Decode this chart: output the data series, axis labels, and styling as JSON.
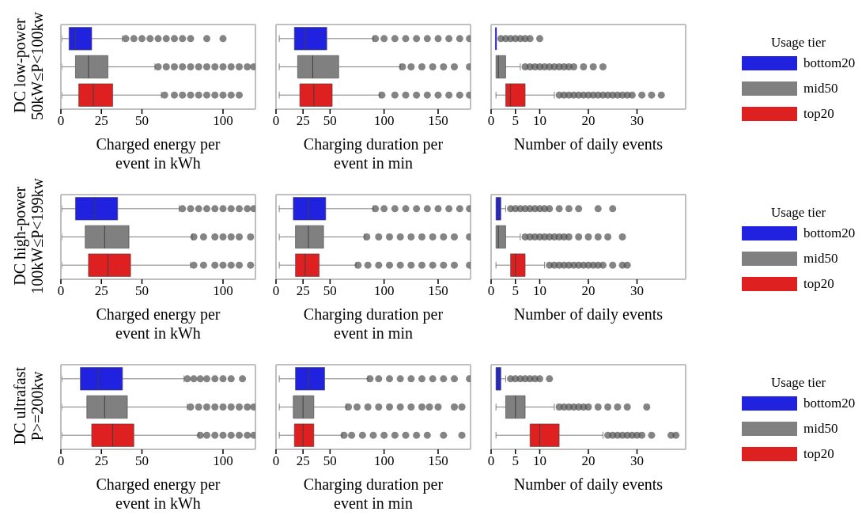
{
  "chart_data": [
    {
      "type": "box",
      "orientation": "horizontal",
      "categories": [
        null,
        null,
        null
      ],
      "ylabel": "DC low-power\n50kW≤P<100kw",
      "xlabel": "Charged energy per\nevent in kWh",
      "xlim": [
        0,
        120
      ],
      "xticks": [
        0,
        25,
        50,
        100
      ],
      "series": [
        {
          "color": "#2121e0",
          "boxes": [
            {
              "low": 0.5,
              "q1": 5,
              "median": 9,
              "q3": 19,
              "high": 38,
              "outliers": [
                40,
                45,
                50,
                55,
                60,
                65,
                70,
                75,
                80,
                90,
                100
              ]
            },
            null,
            null
          ]
        },
        {
          "color": "#808080",
          "boxes": [
            null,
            {
              "low": 0.5,
              "q1": 9,
              "median": 17,
              "q3": 29,
              "high": 58,
              "outliers": [
                60,
                65,
                70,
                75,
                80,
                85,
                90,
                95,
                100,
                105,
                110,
                115,
                119
              ]
            },
            null
          ]
        },
        {
          "color": "#df2020",
          "boxes": [
            null,
            null,
            {
              "low": 0.5,
              "q1": 11,
              "median": 20,
              "q3": 32,
              "high": 62,
              "outliers": [
                64,
                70,
                75,
                80,
                85,
                90,
                95,
                100,
                105,
                110
              ]
            }
          ]
        }
      ]
    },
    {
      "type": "box",
      "orientation": "horizontal",
      "categories": [
        null,
        null,
        null
      ],
      "xlabel": "Charging duration per\nevent in min",
      "xlim": [
        0,
        180
      ],
      "xticks": [
        0,
        25,
        50,
        100,
        150
      ],
      "series": [
        {
          "color": "#2121e0",
          "boxes": [
            {
              "low": 3,
              "q1": 17,
              "median": 27,
              "q3": 47,
              "high": 90,
              "outliers": [
                92,
                100,
                110,
                120,
                130,
                140,
                150,
                160,
                170,
                179
              ]
            },
            null,
            null
          ]
        },
        {
          "color": "#808080",
          "boxes": [
            null,
            {
              "low": 3,
              "q1": 20,
              "median": 34,
              "q3": 58,
              "high": 115,
              "outliers": [
                117,
                125,
                135,
                145,
                155,
                165,
                179
              ]
            },
            null
          ]
        },
        {
          "color": "#df2020",
          "boxes": [
            null,
            null,
            {
              "low": 3,
              "q1": 22,
              "median": 35,
              "q3": 52,
              "high": 96,
              "outliers": [
                98,
                110,
                120,
                130,
                140,
                150,
                160,
                170,
                179
              ]
            }
          ]
        }
      ]
    },
    {
      "type": "box",
      "orientation": "horizontal",
      "categories": [
        null,
        null,
        null
      ],
      "xlabel": "Number of daily events",
      "xlim": [
        0,
        40
      ],
      "xticks": [
        0,
        5,
        10,
        20,
        30
      ],
      "legend": "right",
      "legend_title": "Usage tier",
      "series": [
        {
          "name": "bottom20",
          "color": "#2121e0",
          "boxes": [
            {
              "low": 1,
              "q1": 1,
              "median": 1,
              "q3": 1,
              "high": 1,
              "outliers": [
                2,
                3,
                4,
                5,
                6,
                7,
                8,
                10
              ]
            },
            null,
            null
          ]
        },
        {
          "name": "mid50",
          "color": "#808080",
          "boxes": [
            null,
            {
              "low": 1,
              "q1": 1,
              "median": 1.5,
              "q3": 3,
              "high": 6,
              "outliers": [
                7,
                8,
                9,
                10,
                11,
                12,
                13,
                14,
                15,
                16,
                17,
                19,
                21,
                23
              ]
            },
            null
          ]
        },
        {
          "name": "top20",
          "color": "#df2020",
          "boxes": [
            null,
            null,
            {
              "low": 1,
              "q1": 3,
              "median": 4,
              "q3": 7,
              "high": 13,
              "outliers": [
                14,
                15,
                16,
                17,
                18,
                19,
                20,
                21,
                22,
                23,
                24,
                25,
                26,
                27,
                28,
                29,
                31,
                33,
                35
              ]
            }
          ]
        }
      ]
    },
    {
      "type": "box",
      "orientation": "horizontal",
      "categories": [
        null,
        null,
        null
      ],
      "ylabel": "DC high-power\n100kW≤P<199kw",
      "xlabel": "Charged energy per\nevent in kWh",
      "xlim": [
        0,
        120
      ],
      "xticks": [
        0,
        25,
        50,
        100
      ],
      "series": [
        {
          "color": "#2121e0",
          "boxes": [
            {
              "low": 0.5,
              "q1": 9,
              "median": 21,
              "q3": 35,
              "high": 73,
              "outliers": [
                75,
                80,
                85,
                90,
                95,
                100,
                105,
                110,
                115,
                119
              ]
            },
            null,
            null
          ]
        },
        {
          "color": "#808080",
          "boxes": [
            null,
            {
              "low": 0.5,
              "q1": 15,
              "median": 27,
              "q3": 42,
              "high": 81,
              "outliers": [
                82,
                88,
                95,
                100,
                105,
                110,
                117
              ]
            },
            null
          ]
        },
        {
          "color": "#df2020",
          "boxes": [
            null,
            null,
            {
              "low": 0.5,
              "q1": 17,
              "median": 29,
              "q3": 43,
              "high": 80,
              "outliers": [
                82,
                88,
                95,
                100,
                105,
                110,
                117
              ]
            }
          ]
        }
      ]
    },
    {
      "type": "box",
      "orientation": "horizontal",
      "categories": [
        null,
        null,
        null
      ],
      "xlabel": "Charging duration per\nevent in min",
      "xlim": [
        0,
        180
      ],
      "xticks": [
        0,
        25,
        50,
        100,
        150
      ],
      "series": [
        {
          "color": "#2121e0",
          "boxes": [
            {
              "low": 3,
              "q1": 16,
              "median": 30,
              "q3": 46,
              "high": 90,
              "outliers": [
                92,
                100,
                110,
                120,
                130,
                140,
                150,
                160,
                170,
                179
              ]
            },
            null,
            null
          ]
        },
        {
          "color": "#808080",
          "boxes": [
            null,
            {
              "low": 3,
              "q1": 18,
              "median": 30,
              "q3": 44,
              "high": 82,
              "outliers": [
                84,
                95,
                105,
                115,
                125,
                135,
                145,
                155,
                165,
                179
              ]
            },
            null
          ]
        },
        {
          "color": "#df2020",
          "boxes": [
            null,
            null,
            {
              "low": 3,
              "q1": 18,
              "median": 27,
              "q3": 40,
              "high": 74,
              "outliers": [
                76,
                85,
                95,
                105,
                115,
                125,
                135,
                145,
                155,
                165,
                179
              ]
            }
          ]
        }
      ]
    },
    {
      "type": "box",
      "orientation": "horizontal",
      "categories": [
        null,
        null,
        null
      ],
      "xlabel": "Number of daily events",
      "xlim": [
        0,
        40
      ],
      "xticks": [
        0,
        5,
        10,
        20,
        30
      ],
      "legend": "right",
      "legend_title": "Usage tier",
      "series": [
        {
          "name": "bottom20",
          "color": "#2121e0",
          "boxes": [
            {
              "low": 1,
              "q1": 1,
              "median": 1.5,
              "q3": 2,
              "high": 3,
              "outliers": [
                4,
                5,
                6,
                7,
                8,
                9,
                10,
                11,
                12,
                14,
                16,
                18,
                22,
                25
              ]
            },
            null,
            null
          ]
        },
        {
          "name": "mid50",
          "color": "#808080",
          "boxes": [
            null,
            {
              "low": 1,
              "q1": 1,
              "median": 1.5,
              "q3": 3,
              "high": 6,
              "outliers": [
                7,
                8,
                9,
                10,
                11,
                12,
                13,
                14,
                15,
                16,
                18,
                20,
                22,
                24,
                27
              ]
            },
            null
          ]
        },
        {
          "name": "top20",
          "color": "#df2020",
          "boxes": [
            null,
            null,
            {
              "low": 1,
              "q1": 4,
              "median": 5,
              "q3": 7,
              "high": 11,
              "outliers": [
                12,
                13,
                14,
                15,
                16,
                17,
                18,
                19,
                20,
                21,
                22,
                23,
                25,
                27,
                28
              ]
            }
          ]
        }
      ]
    },
    {
      "type": "box",
      "orientation": "horizontal",
      "categories": [
        null,
        null,
        null
      ],
      "ylabel": "DC ultrafast\nP>=200kw",
      "xlabel": "Charged energy per\nevent in kWh",
      "xlim": [
        0,
        120
      ],
      "xticks": [
        0,
        25,
        50,
        100
      ],
      "series": [
        {
          "color": "#2121e0",
          "boxes": [
            {
              "low": 0.5,
              "q1": 12,
              "median": 23,
              "q3": 38,
              "high": 76,
              "outliers": [
                78,
                82,
                86,
                90,
                95,
                100,
                105,
                112
              ]
            },
            null,
            null
          ]
        },
        {
          "color": "#808080",
          "boxes": [
            null,
            {
              "low": 0.5,
              "q1": 16,
              "median": 27,
              "q3": 41,
              "high": 78,
              "outliers": [
                80,
                85,
                90,
                95,
                100,
                105,
                110,
                115,
                119
              ]
            },
            null
          ]
        },
        {
          "color": "#df2020",
          "boxes": [
            null,
            null,
            {
              "low": 0.5,
              "q1": 19,
              "median": 32,
              "q3": 45,
              "high": 85,
              "outliers": [
                86,
                90,
                95,
                100,
                105,
                110,
                115,
                119
              ]
            }
          ]
        }
      ]
    },
    {
      "type": "box",
      "orientation": "horizontal",
      "categories": [
        null,
        null,
        null
      ],
      "xlabel": "Charging duration per\nevent in min",
      "xlim": [
        0,
        180
      ],
      "xticks": [
        0,
        25,
        50,
        100,
        150
      ],
      "series": [
        {
          "color": "#2121e0",
          "boxes": [
            {
              "low": 3,
              "q1": 18,
              "median": 30,
              "q3": 45,
              "high": 85,
              "outliers": [
                87,
                95,
                105,
                115,
                125,
                135,
                145,
                155,
                165,
                179
              ]
            },
            null,
            null
          ]
        },
        {
          "color": "#808080",
          "boxes": [
            null,
            {
              "low": 3,
              "q1": 16,
              "median": 25,
              "q3": 35,
              "high": 65,
              "outliers": [
                67,
                75,
                85,
                95,
                105,
                115,
                125,
                135,
                142,
                150,
                165,
                172
              ]
            },
            null
          ]
        },
        {
          "color": "#df2020",
          "boxes": [
            null,
            null,
            {
              "low": 3,
              "q1": 17,
              "median": 25,
              "q3": 35,
              "high": 61,
              "outliers": [
                63,
                70,
                80,
                90,
                100,
                110,
                120,
                130,
                140,
                155,
                172
              ]
            }
          ]
        }
      ]
    },
    {
      "type": "box",
      "orientation": "horizontal",
      "categories": [
        null,
        null,
        null
      ],
      "xlabel": "Number of daily events",
      "xlim": [
        0,
        40
      ],
      "xticks": [
        0,
        5,
        10,
        20,
        30
      ],
      "legend": "right",
      "legend_title": "Usage tier",
      "series": [
        {
          "name": "bottom20",
          "color": "#2121e0",
          "boxes": [
            {
              "low": 1,
              "q1": 1,
              "median": 1.5,
              "q3": 2,
              "high": 3,
              "outliers": [
                4,
                5,
                6,
                7,
                8,
                9,
                10,
                12
              ]
            },
            null,
            null
          ]
        },
        {
          "name": "mid50",
          "color": "#808080",
          "boxes": [
            null,
            {
              "low": 1,
              "q1": 3,
              "median": 5,
              "q3": 7,
              "high": 13,
              "outliers": [
                14,
                15,
                16,
                17,
                18,
                19,
                20,
                22,
                24,
                26,
                28,
                32
              ]
            },
            null
          ]
        },
        {
          "name": "top20",
          "color": "#df2020",
          "boxes": [
            null,
            null,
            {
              "low": 1,
              "q1": 8,
              "median": 10,
              "q3": 14,
              "high": 23,
              "outliers": [
                24,
                25,
                26,
                27,
                28,
                29,
                30,
                31,
                33,
                37,
                38
              ]
            }
          ]
        }
      ]
    }
  ]
}
